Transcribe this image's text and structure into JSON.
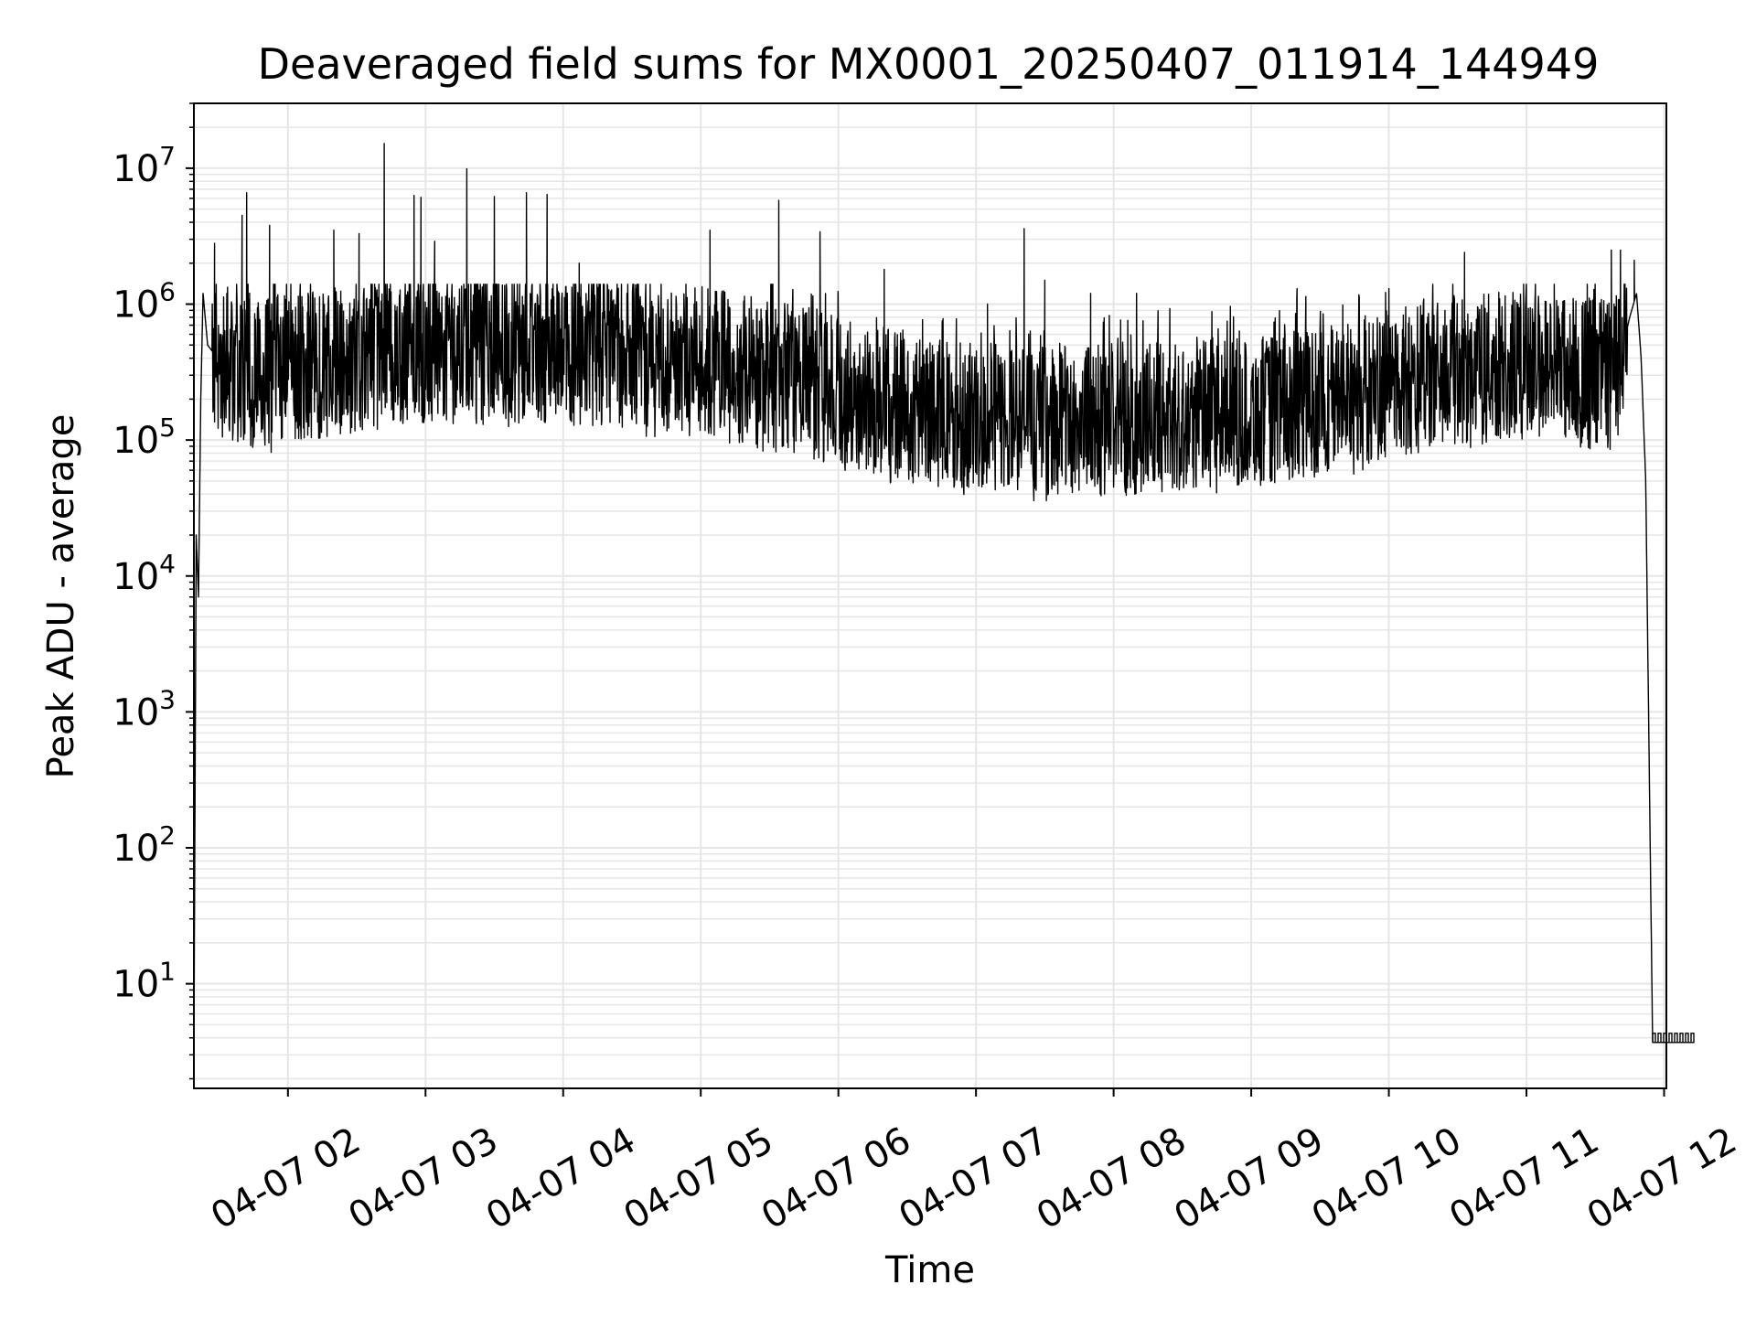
{
  "chart_data": {
    "type": "line",
    "title": "Deaveraged field sums for MX0001_20250407_011914_144949",
    "xlabel": "Time",
    "ylabel": "Peak ADU - average",
    "xscale": "time",
    "yscale": "log",
    "grid": true,
    "legend": "none",
    "x_range": [
      "2025-04-07 01:19",
      "2025-04-07 12:01"
    ],
    "ylim": [
      1.7,
      30000000
    ],
    "x_ticks": [
      {
        "x": "2025-04-07 02:00",
        "label": "04-07 02"
      },
      {
        "x": "2025-04-07 03:00",
        "label": "04-07 03"
      },
      {
        "x": "2025-04-07 04:00",
        "label": "04-07 04"
      },
      {
        "x": "2025-04-07 05:00",
        "label": "04-07 05"
      },
      {
        "x": "2025-04-07 06:00",
        "label": "04-07 06"
      },
      {
        "x": "2025-04-07 07:00",
        "label": "04-07 07"
      },
      {
        "x": "2025-04-07 08:00",
        "label": "04-07 08"
      },
      {
        "x": "2025-04-07 09:00",
        "label": "04-07 09"
      },
      {
        "x": "2025-04-07 10:00",
        "label": "04-07 10"
      },
      {
        "x": "2025-04-07 11:00",
        "label": "04-07 11"
      },
      {
        "x": "2025-04-07 12:00",
        "label": "04-07 12"
      }
    ],
    "y_ticks": [
      {
        "base": "10",
        "exp": "1"
      },
      {
        "base": "10",
        "exp": "2"
      },
      {
        "base": "10",
        "exp": "3"
      },
      {
        "base": "10",
        "exp": "4"
      },
      {
        "base": "10",
        "exp": "5"
      },
      {
        "base": "10",
        "exp": "6"
      },
      {
        "base": "10",
        "exp": "7"
      }
    ],
    "line_color": "#000000",
    "grid_color": "#e6e6e6",
    "series": [
      {
        "x": [
          "2025-04-07 01:19",
          "2025-04-07 01:20",
          "2025-04-07 01:21",
          "2025-04-07 01:22",
          "2025-04-07 01:23",
          "2025-04-07 01:25",
          "2025-04-07 01:27",
          "2025-04-07 01:30",
          "2025-04-07 01:32",
          "2025-04-07 01:35",
          "2025-04-07 01:40",
          "2025-04-07 01:45",
          "2025-04-07 01:50",
          "2025-04-07 01:55",
          "2025-04-07 02:00",
          "2025-04-07 02:10",
          "2025-04-07 02:20",
          "2025-04-07 02:30",
          "2025-04-07 02:40",
          "2025-04-07 02:50",
          "2025-04-07 03:00",
          "2025-04-07 03:15",
          "2025-04-07 03:30",
          "2025-04-07 03:45",
          "2025-04-07 04:00",
          "2025-04-07 04:20",
          "2025-04-07 04:40",
          "2025-04-07 05:00",
          "2025-04-07 05:20",
          "2025-04-07 05:40",
          "2025-04-07 06:00",
          "2025-04-07 06:30",
          "2025-04-07 07:00",
          "2025-04-07 07:30",
          "2025-04-07 08:00",
          "2025-04-07 08:30",
          "2025-04-07 09:00",
          "2025-04-07 09:30",
          "2025-04-07 10:00",
          "2025-04-07 10:30",
          "2025-04-07 11:00",
          "2025-04-07 11:20",
          "2025-04-07 11:35",
          "2025-04-07 11:40",
          "2025-04-07 11:45",
          "2025-04-07 11:48",
          "2025-04-07 11:50",
          "2025-04-07 11:52",
          "2025-04-07 11:55",
          "2025-04-07 12:00",
          "2025-04-07 12:01"
        ],
        "y_base": [
          3.5,
          20000,
          7000,
          200000,
          1200000,
          500000,
          450000,
          400000,
          380000,
          350000,
          320000,
          300000,
          310000,
          330000,
          350000,
          360000,
          380000,
          400000,
          420000,
          440000,
          460000,
          470000,
          480000,
          470000,
          460000,
          440000,
          420000,
          380000,
          330000,
          280000,
          230000,
          180000,
          150000,
          140000,
          140000,
          150000,
          160000,
          190000,
          260000,
          330000,
          360000,
          340000,
          330000,
          340000,
          800000,
          1200000,
          400000,
          50000,
          3.7,
          3.7,
          3.7
        ],
        "spikes": [
          {
            "x": "2025-04-07 01:28",
            "y": 2800000
          },
          {
            "x": "2025-04-07 01:40",
            "y": 4500000
          },
          {
            "x": "2025-04-07 01:42",
            "y": 6600000
          },
          {
            "x": "2025-04-07 01:52",
            "y": 3800000
          },
          {
            "x": "2025-04-07 02:20",
            "y": 3500000
          },
          {
            "x": "2025-04-07 02:31",
            "y": 3300000
          },
          {
            "x": "2025-04-07 02:42",
            "y": 15200000
          },
          {
            "x": "2025-04-07 02:55",
            "y": 6300000
          },
          {
            "x": "2025-04-07 02:58",
            "y": 6100000
          },
          {
            "x": "2025-04-07 03:04",
            "y": 2900000
          },
          {
            "x": "2025-04-07 03:18",
            "y": 9900000
          },
          {
            "x": "2025-04-07 03:30",
            "y": 6200000
          },
          {
            "x": "2025-04-07 03:44",
            "y": 6600000
          },
          {
            "x": "2025-04-07 03:53",
            "y": 6400000
          },
          {
            "x": "2025-04-07 04:07",
            "y": 2000000
          },
          {
            "x": "2025-04-07 04:32",
            "y": 1300000
          },
          {
            "x": "2025-04-07 05:04",
            "y": 3500000
          },
          {
            "x": "2025-04-07 05:34",
            "y": 5800000
          },
          {
            "x": "2025-04-07 05:52",
            "y": 3400000
          },
          {
            "x": "2025-04-07 06:20",
            "y": 1800000
          },
          {
            "x": "2025-04-07 07:05",
            "y": 1000000
          },
          {
            "x": "2025-04-07 07:21",
            "y": 3600000
          },
          {
            "x": "2025-04-07 07:30",
            "y": 1500000
          },
          {
            "x": "2025-04-07 07:50",
            "y": 1200000
          },
          {
            "x": "2025-04-07 08:10",
            "y": 1200000
          },
          {
            "x": "2025-04-07 09:20",
            "y": 1300000
          },
          {
            "x": "2025-04-07 10:00",
            "y": 1300000
          },
          {
            "x": "2025-04-07 10:33",
            "y": 2400000
          },
          {
            "x": "2025-04-07 11:37",
            "y": 2500000
          },
          {
            "x": "2025-04-07 11:41",
            "y": 2500000
          },
          {
            "x": "2025-04-07 11:47",
            "y": 2100000
          }
        ]
      }
    ]
  }
}
